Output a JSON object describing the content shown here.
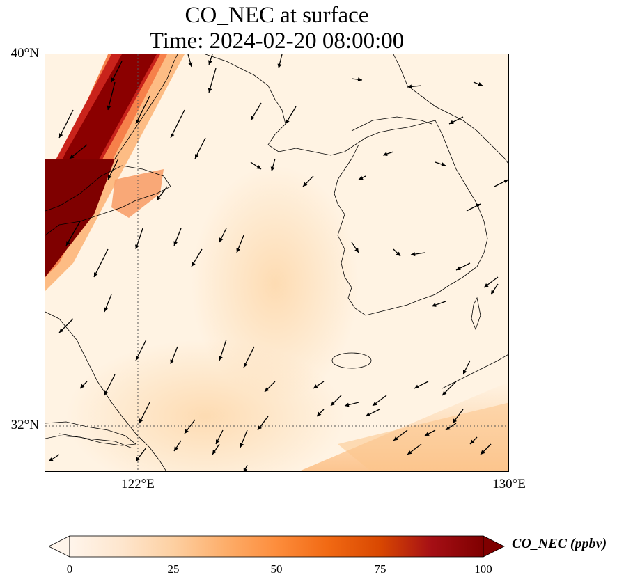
{
  "title": {
    "line1": "CO_NEC at surface",
    "line2": "Time: 2024-02-20 08:00:00"
  },
  "axes": {
    "lat_ticks": [
      "40°N",
      "32°N"
    ],
    "lon_ticks": [
      "122°E",
      "130°E"
    ],
    "gridlines": "dotted"
  },
  "colorbar": {
    "label": "CO_NEC (ppbv)",
    "ticks": [
      "0",
      "25",
      "50",
      "75",
      "100"
    ],
    "range": [
      0,
      100
    ],
    "extend": "both",
    "colormap": [
      "#fff5eb",
      "#fee6ce",
      "#fdd0a2",
      "#fdae6b",
      "#fd8d3c",
      "#f16913",
      "#d94801",
      "#a50f15",
      "#7f0000"
    ]
  },
  "map": {
    "region": "Yellow Sea / Korean Peninsula",
    "lon_range": [
      120,
      130
    ],
    "lat_range": [
      31,
      40
    ],
    "layers": [
      "CO_NEC concentration field",
      "coastlines",
      "wind vectors"
    ]
  }
}
